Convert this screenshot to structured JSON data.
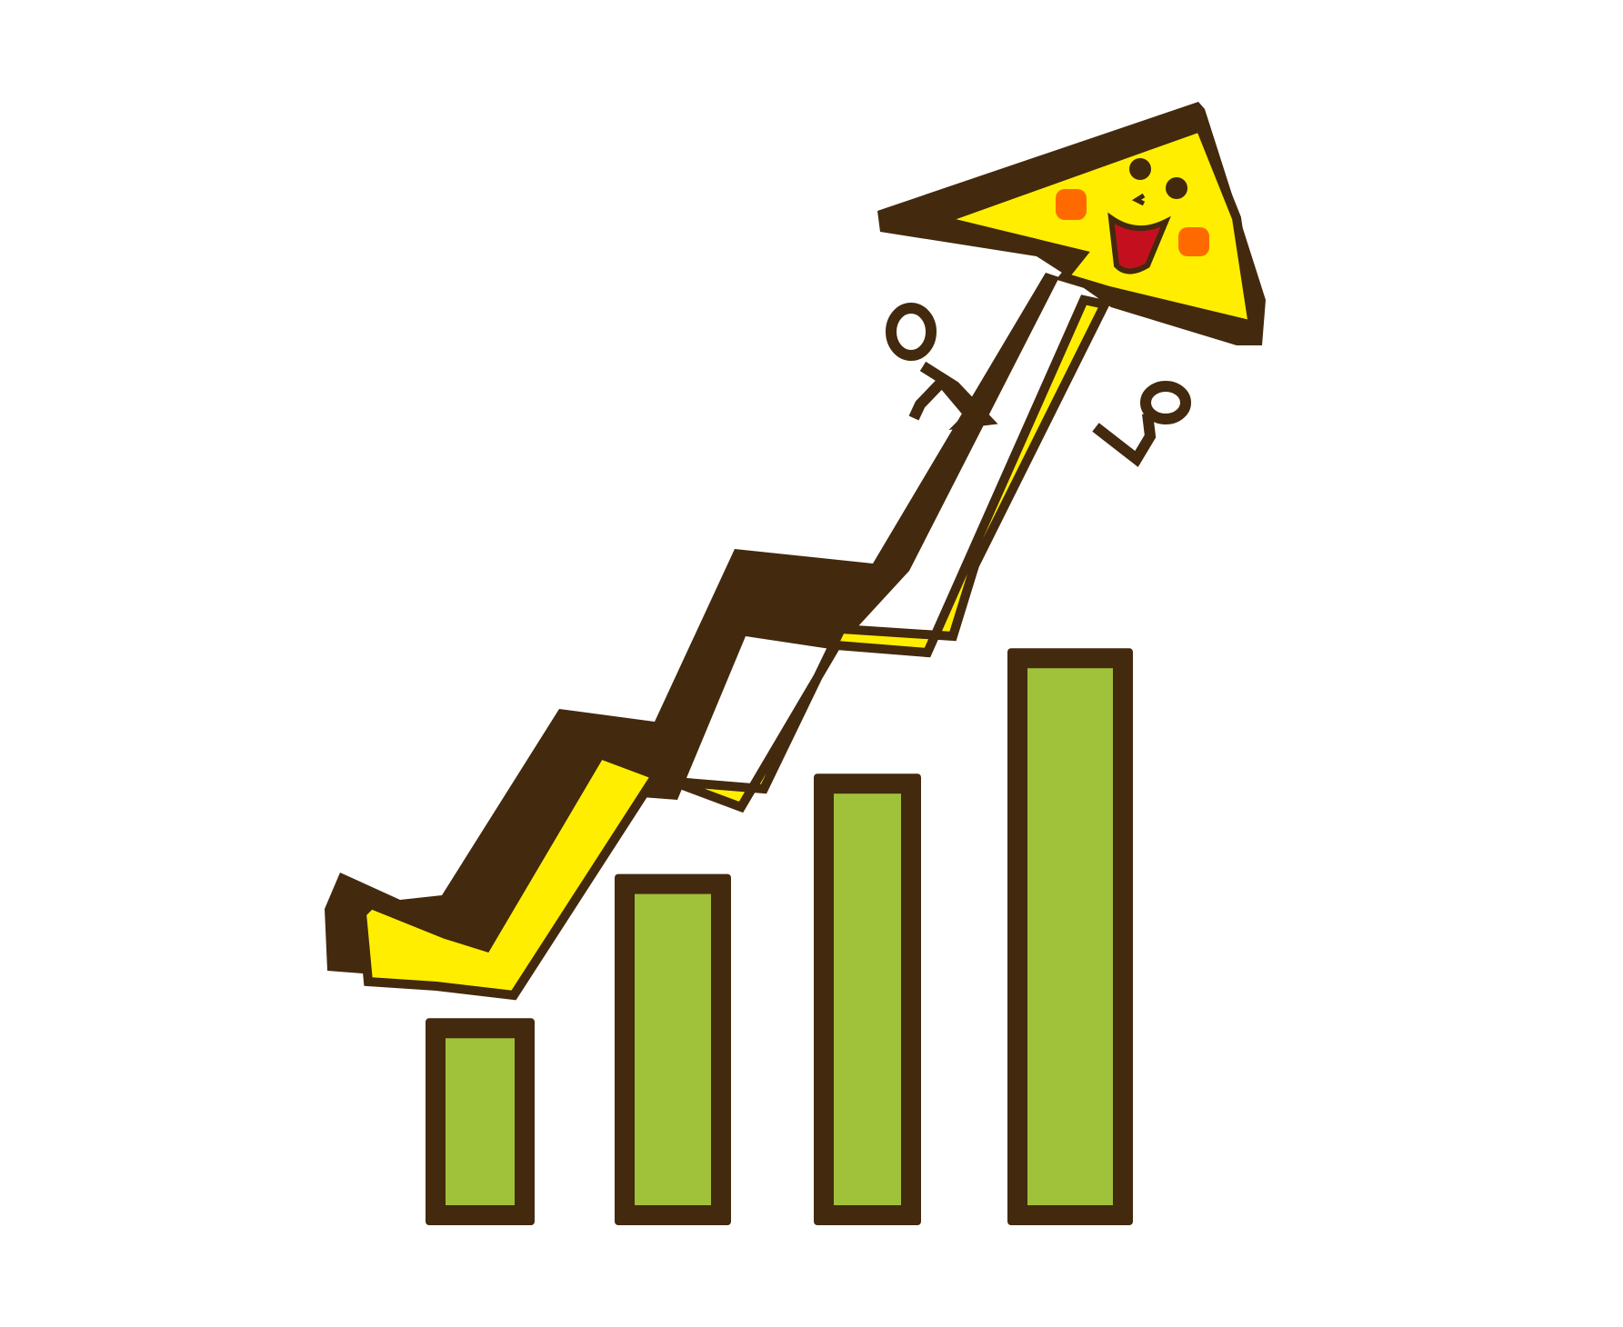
{
  "illustration": {
    "subject": "cartoon-growth-chart",
    "bar_count": 4,
    "bar_relative_heights": [
      0.33,
      0.56,
      0.72,
      0.92
    ],
    "colors": {
      "outline": "#43290d",
      "bar_fill": "#9fc23a",
      "arrow_fill": "#ffee00",
      "cheek": "#ff6a00",
      "mouth": "#c4101e",
      "background": "#ffffff"
    }
  }
}
